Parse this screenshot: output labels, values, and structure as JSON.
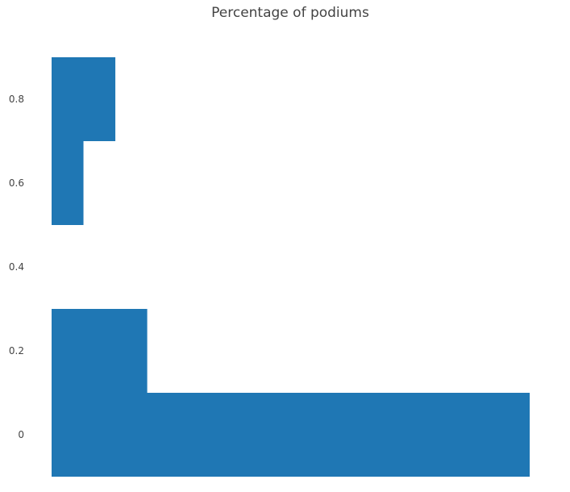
{
  "chart_data": {
    "type": "bar",
    "orientation": "horizontal",
    "title": "Percentage of podiums",
    "xlabel": "",
    "ylabel": "",
    "grid": false,
    "legend": "none",
    "color": "#1f77b4",
    "ylim": [
      -0.1,
      0.9
    ],
    "y_ticks": [
      0,
      0.2,
      0.4,
      0.6,
      0.8
    ],
    "y_tick_labels": [
      "0",
      "0.2",
      "0.4",
      "0.6",
      "0.8"
    ],
    "bars": [
      {
        "y0": 0.7,
        "y1": 0.9,
        "value": 2
      },
      {
        "y0": 0.5,
        "y1": 0.7,
        "value": 1
      },
      {
        "y0": 0.1,
        "y1": 0.3,
        "value": 3
      },
      {
        "y0": -0.1,
        "y1": 0.1,
        "value": 15
      }
    ],
    "x_max": 15
  }
}
